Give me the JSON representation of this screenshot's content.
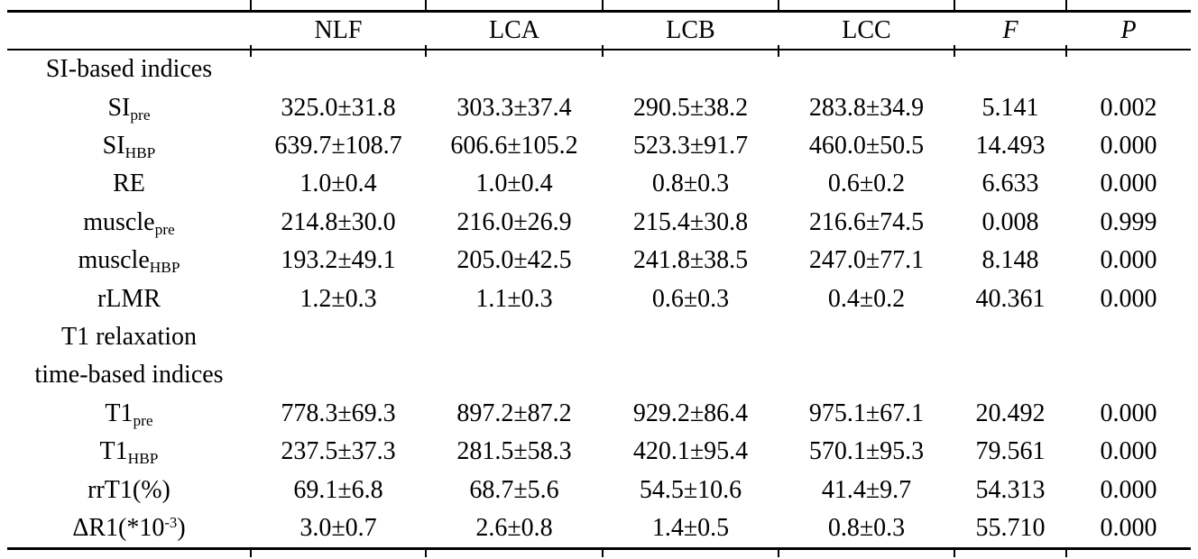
{
  "colors": {
    "background": "#ffffff",
    "text": "#000000",
    "rule": "#000000"
  },
  "table": {
    "columns": [
      "",
      "NLF",
      "LCA",
      "LCB",
      "LCC",
      "F",
      "P"
    ],
    "rows": [
      {
        "type": "section",
        "lines": [
          "SI-based indices"
        ]
      },
      {
        "type": "data",
        "label": {
          "base": "SI",
          "sub": "pre"
        },
        "values": [
          "325.0±31.8",
          "303.3±37.4",
          "290.5±38.2",
          "283.8±34.9",
          "5.141",
          "0.002"
        ]
      },
      {
        "type": "data",
        "label": {
          "base": "SI",
          "sub": "HBP"
        },
        "values": [
          "639.7±108.7",
          "606.6±105.2",
          "523.3±91.7",
          "460.0±50.5",
          "14.493",
          "0.000"
        ]
      },
      {
        "type": "data",
        "label": {
          "base": "RE"
        },
        "values": [
          "1.0±0.4",
          "1.0±0.4",
          "0.8±0.3",
          "0.6±0.2",
          "6.633",
          "0.000"
        ]
      },
      {
        "type": "data",
        "label": {
          "base": "muscle",
          "sub": "pre"
        },
        "values": [
          "214.8±30.0",
          "216.0±26.9",
          "215.4±30.8",
          "216.6±74.5",
          "0.008",
          "0.999"
        ]
      },
      {
        "type": "data",
        "label": {
          "base": "muscle",
          "sub": "HBP"
        },
        "values": [
          "193.2±49.1",
          "205.0±42.5",
          "241.8±38.5",
          "247.0±77.1",
          "8.148",
          "0.000"
        ]
      },
      {
        "type": "data",
        "label": {
          "base": "rLMR"
        },
        "values": [
          "1.2±0.3",
          "1.1±0.3",
          "0.6±0.3",
          "0.4±0.2",
          "40.361",
          "0.000"
        ]
      },
      {
        "type": "section",
        "lines": [
          "T1 relaxation",
          "time-based indices"
        ]
      },
      {
        "type": "data",
        "label": {
          "base": "T1",
          "sub": "pre"
        },
        "values": [
          "778.3±69.3",
          "897.2±87.2",
          "929.2±86.4",
          "975.1±67.1",
          "20.492",
          "0.000"
        ]
      },
      {
        "type": "data",
        "label": {
          "base": "T1",
          "sub": "HBP"
        },
        "values": [
          "237.5±37.3",
          "281.5±58.3",
          "420.1±95.4",
          "570.1±95.3",
          "79.561",
          "0.000"
        ]
      },
      {
        "type": "data",
        "label": {
          "base": "rrT1(%)"
        },
        "values": [
          "69.1±6.8",
          "68.7±5.6",
          "54.5±10.6",
          "41.4±9.7",
          "54.313",
          "0.000"
        ]
      },
      {
        "type": "data",
        "label": {
          "base": "ΔR1(*10",
          "sup": "-3",
          "tail": ")"
        },
        "values": [
          "3.0±0.7",
          "2.6±0.8",
          "1.4±0.5",
          "0.8±0.3",
          "55.710",
          "0.000"
        ]
      }
    ]
  }
}
